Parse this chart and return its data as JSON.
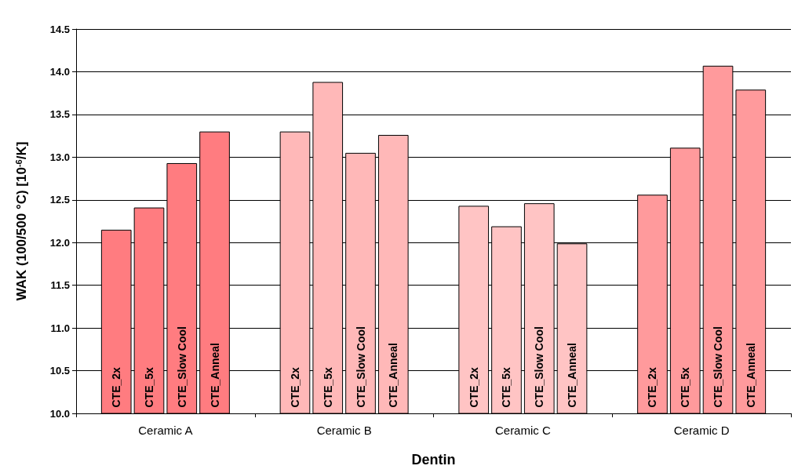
{
  "chart_data": {
    "type": "bar",
    "xlabel": "Dentin",
    "ylabel": "WAK (100/500 °C) [10$^{-6}$/K]",
    "categories": [
      "Ceramic A",
      "Ceramic B",
      "Ceramic C",
      "Ceramic D"
    ],
    "series": [
      {
        "name": "CTE_2x",
        "colors": [
          "#ff7c80",
          "#ffb8b8",
          "#ffc4c4",
          "#ff9a9c"
        ],
        "values": [
          12.15,
          13.3,
          12.43,
          12.56
        ]
      },
      {
        "name": "CTE_5x",
        "colors": [
          "#ff7c80",
          "#ffb8b8",
          "#ffc4c4",
          "#ff9a9c"
        ],
        "values": [
          12.41,
          13.88,
          12.19,
          13.11
        ]
      },
      {
        "name": "CTE_Slow Cool",
        "colors": [
          "#ff7c80",
          "#ffb8b8",
          "#ffc4c4",
          "#ff9a9c"
        ],
        "values": [
          12.93,
          13.05,
          12.46,
          14.07
        ]
      },
      {
        "name": "CTE_Anneal",
        "colors": [
          "#ff7c80",
          "#ffb8b8",
          "#ffc4c4",
          "#ff9a9c"
        ],
        "values": [
          13.3,
          13.26,
          11.99,
          13.79
        ]
      }
    ],
    "ylim": [
      10,
      14.5
    ],
    "yticks": [
      {
        "value": 10,
        "label": "10.0"
      },
      {
        "value": 10.5,
        "label": "10.5"
      },
      {
        "value": 11,
        "label": "11.0"
      },
      {
        "value": 11.5,
        "label": "11.5"
      },
      {
        "value": 12,
        "label": "12.0"
      },
      {
        "value": 12.5,
        "label": "12.5"
      },
      {
        "value": 13,
        "label": "13.0"
      },
      {
        "value": 13.5,
        "label": "13.5"
      },
      {
        "value": 14,
        "label": "14.0"
      },
      {
        "value": 14.5,
        "label": "14.5"
      }
    ],
    "grid": "y",
    "legend": false
  }
}
